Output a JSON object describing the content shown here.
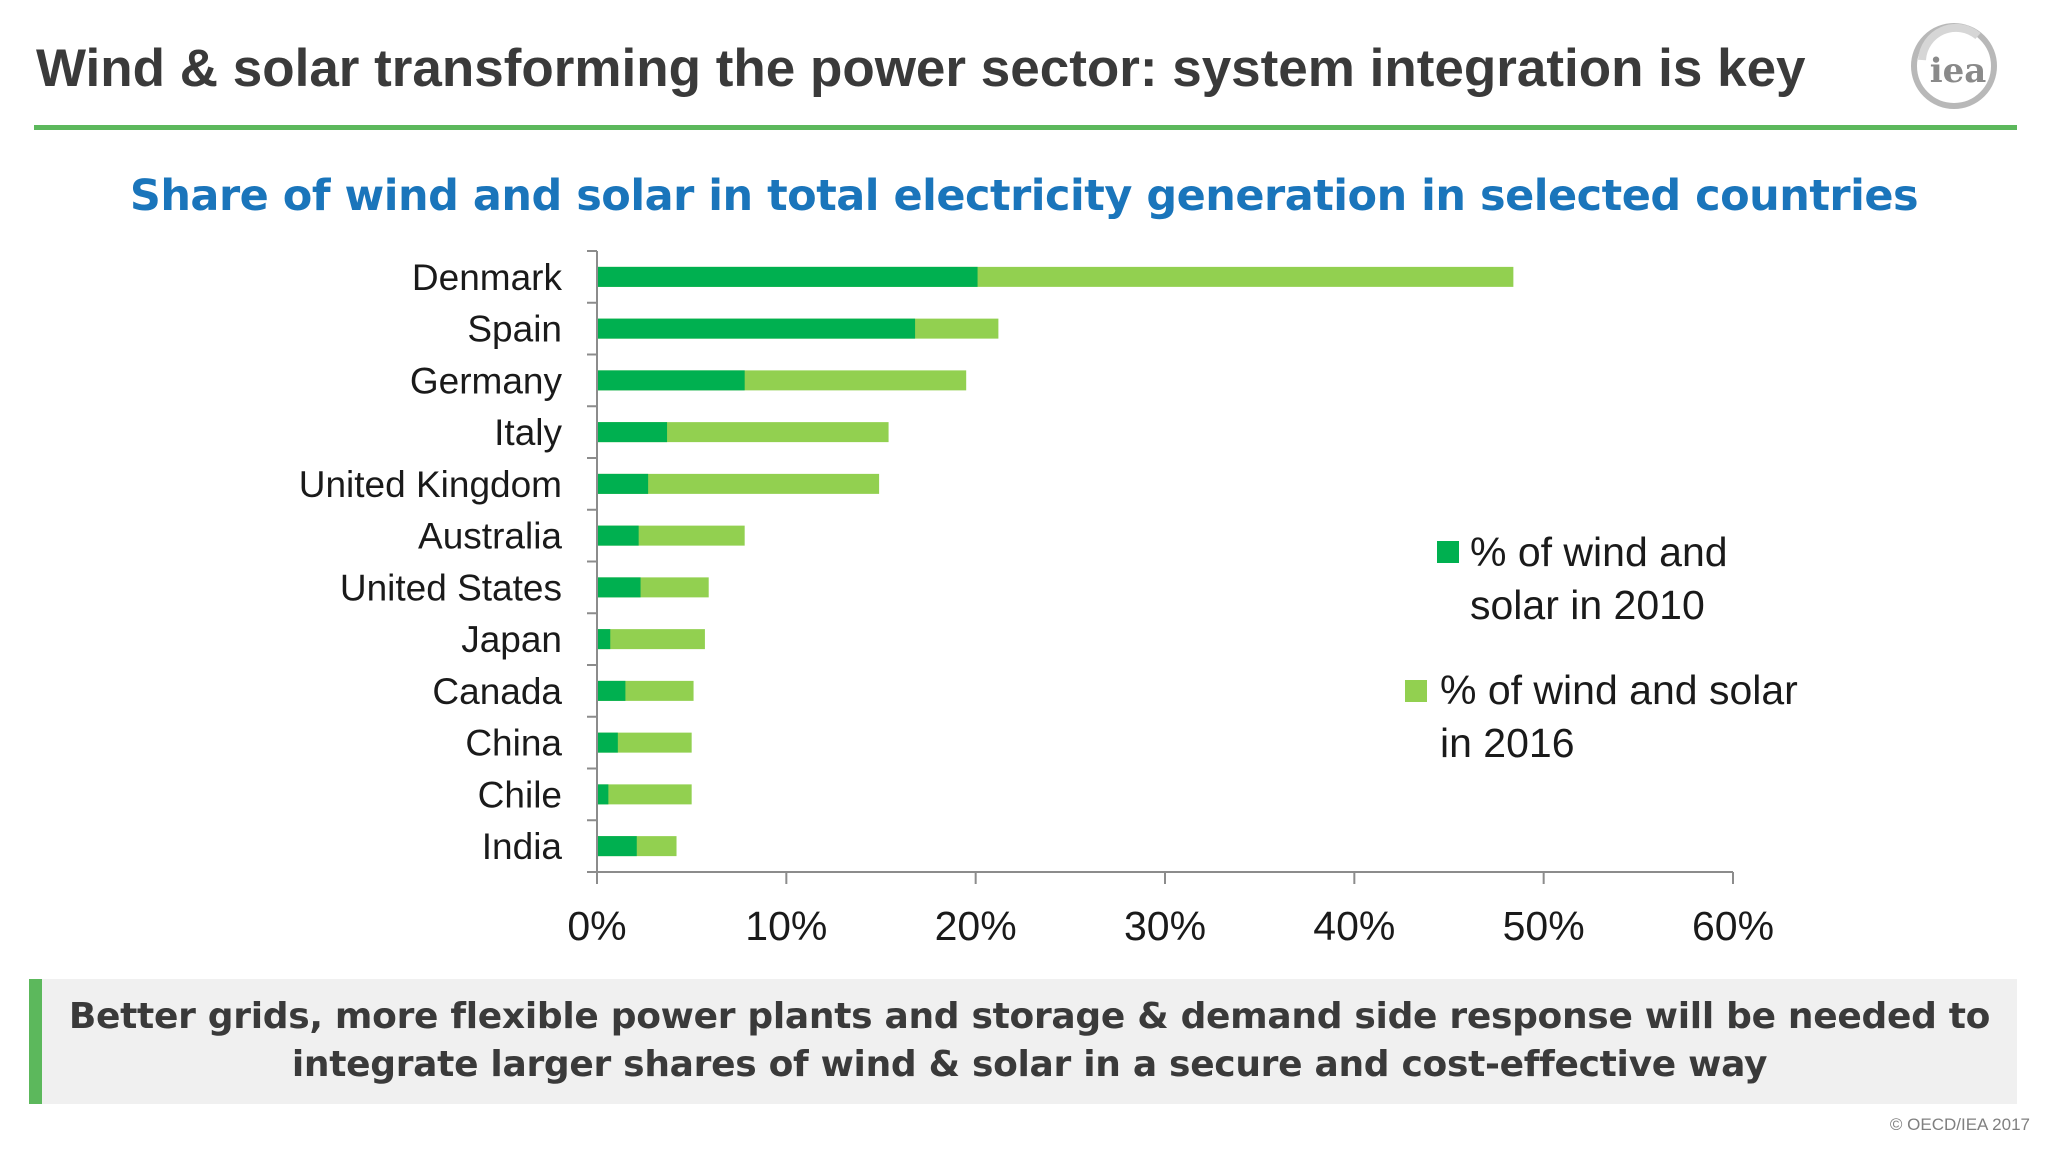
{
  "slide": {
    "title": "Wind & solar transforming the power sector: system integration is key",
    "logo_text": "iea",
    "callout": "Better grids, more flexible power plants and storage & demand side response will be needed to integrate larger shares of wind & solar in a secure and cost-effective way",
    "copyright": "© OECD/IEA 2017"
  },
  "colors": {
    "series_2010": "#00b050",
    "series_2016": "#92d050",
    "title_text": "#3a3a3a",
    "chart_title": "#1a75bb",
    "accent_rule": "#5cb85c"
  },
  "chart_data": {
    "type": "bar",
    "orientation": "horizontal",
    "title": "Share of wind and solar in total electricity generation in selected countries",
    "categories": [
      "Denmark",
      "Spain",
      "Germany",
      "Italy",
      "United Kingdom",
      "Australia",
      "United States",
      "Japan",
      "Canada",
      "China",
      "Chile",
      "India"
    ],
    "series": [
      {
        "name": "% of wind and solar in 2010",
        "values": [
          20.1,
          16.8,
          7.8,
          3.7,
          2.7,
          2.2,
          2.3,
          0.7,
          1.5,
          1.1,
          0.6,
          2.1
        ]
      },
      {
        "name": "% of wind and solar in 2016",
        "values": [
          48.4,
          21.2,
          19.5,
          15.4,
          14.9,
          7.8,
          5.9,
          5.7,
          5.1,
          5.0,
          5.0,
          4.2
        ]
      }
    ],
    "xlim": [
      0,
      60
    ],
    "xticks": [
      0,
      10,
      20,
      30,
      40,
      50,
      60
    ],
    "xtick_labels": [
      "0%",
      "10%",
      "20%",
      "30%",
      "40%",
      "50%",
      "60%"
    ],
    "xlabel": "",
    "ylabel": "",
    "grid": false,
    "legend_position": "right"
  }
}
